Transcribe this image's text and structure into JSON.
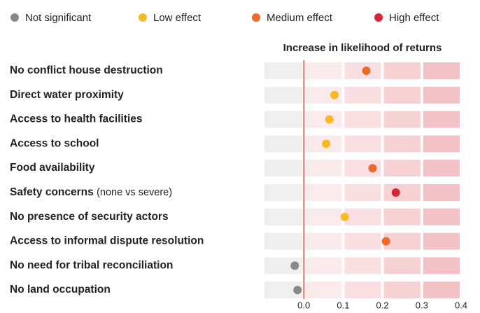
{
  "chart_data": {
    "type": "dot",
    "x_label": "Increase in likelihood of returns",
    "categories": [
      "No conflict house destruction",
      "Direct water proximity",
      "Access to health facilities",
      "Access to school",
      "Food availability",
      "Safety concerns",
      "No presence of security actors",
      "Access to informal dispute resolution",
      "No need for tribal reconciliation",
      "No land occupation"
    ],
    "category_notes": [
      null,
      null,
      null,
      null,
      null,
      "(none vs severe)",
      null,
      null,
      null,
      null
    ],
    "series": [
      {
        "name": "Not significant",
        "color": "#888888",
        "values": [
          null,
          null,
          null,
          null,
          null,
          null,
          null,
          null,
          -0.023,
          -0.016
        ]
      },
      {
        "name": "Low effect",
        "color": "#f7b924",
        "values": [
          null,
          0.078,
          0.065,
          0.057,
          null,
          null,
          0.104,
          null,
          null,
          null
        ]
      },
      {
        "name": "Medium effect",
        "color": "#ee6a2a",
        "values": [
          0.159,
          null,
          null,
          null,
          0.175,
          null,
          null,
          0.209,
          null,
          null
        ]
      },
      {
        "name": "High effect",
        "color": "#d62638",
        "values": [
          null,
          null,
          null,
          null,
          null,
          0.234,
          null,
          null,
          null,
          null
        ]
      }
    ],
    "xlim": [
      -0.1,
      0.4
    ],
    "xticks": [
      {
        "value": 0,
        "label": "0.0"
      },
      0.1,
      0.2,
      0.3,
      0.4
    ]
  }
}
